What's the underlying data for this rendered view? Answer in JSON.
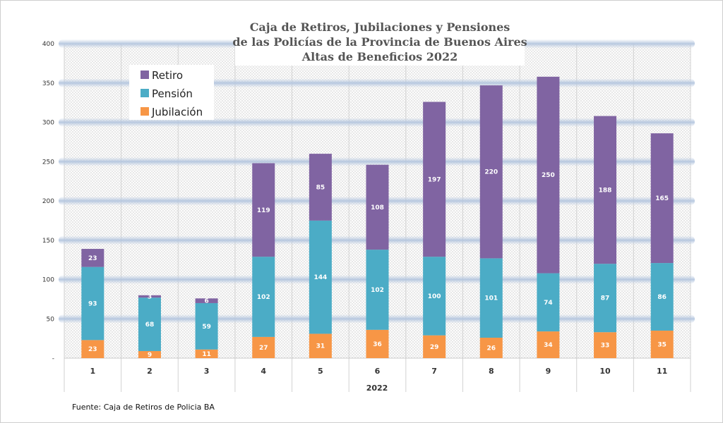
{
  "chart_data": {
    "type": "bar",
    "stacked": true,
    "title": [
      "Caja de Retiros, Jubilaciones y Pensiones",
      "de las Policías de la Provincia de Buenos Aires",
      "Altas de Beneficios 2022"
    ],
    "xlabel": "2022",
    "ylabel": "",
    "categories": [
      "1",
      "2",
      "3",
      "4",
      "5",
      "6",
      "7",
      "8",
      "9",
      "10",
      "11"
    ],
    "series": [
      {
        "name": "Jubilación",
        "color": "#f79646",
        "values": [
          23,
          9,
          11,
          27,
          31,
          36,
          29,
          26,
          34,
          33,
          35
        ]
      },
      {
        "name": "Pensión",
        "color": "#4bacc6",
        "values": [
          93,
          68,
          59,
          102,
          144,
          102,
          100,
          101,
          74,
          87,
          86
        ]
      },
      {
        "name": "Retiro",
        "color": "#8064a2",
        "values": [
          23,
          3,
          6,
          119,
          85,
          108,
          197,
          220,
          250,
          188,
          165
        ]
      }
    ],
    "legend_order": [
      "Retiro",
      "Pensión",
      "Jubilación"
    ],
    "y_ticks": [
      "-",
      "50",
      "100",
      "150",
      "200",
      "250",
      "300",
      "350",
      "400"
    ],
    "ylim": [
      0,
      400
    ],
    "grid": true,
    "legend_position": "top-left"
  },
  "source_note": "Fuente: Caja de Retiros de Policia BA"
}
